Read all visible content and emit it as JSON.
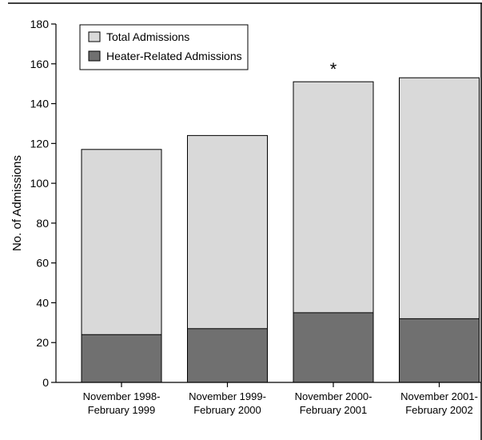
{
  "chart_data": {
    "type": "bar",
    "stacked": "overlaid",
    "title": "",
    "xlabel": "",
    "ylabel": "No. of Admissions",
    "ylim": [
      0,
      180
    ],
    "yticks": [
      0,
      20,
      40,
      60,
      80,
      100,
      120,
      140,
      160,
      180
    ],
    "categories": [
      [
        "November 1998-",
        "February 1999"
      ],
      [
        "November 1999-",
        "February 2000"
      ],
      [
        "November 2000-",
        "February 2001"
      ],
      [
        "November 2001-",
        "February 2002"
      ]
    ],
    "series": [
      {
        "name": "Total Admissions",
        "values": [
          117,
          124,
          151,
          153
        ],
        "color": "#d9d9d9"
      },
      {
        "name": "Heater-Related Admissions",
        "values": [
          24,
          27,
          35,
          32
        ],
        "color": "#707070"
      }
    ],
    "annotations": [
      {
        "category_index": 2,
        "text": "*"
      }
    ],
    "legend": {
      "position": "top-left"
    },
    "grid": false
  }
}
